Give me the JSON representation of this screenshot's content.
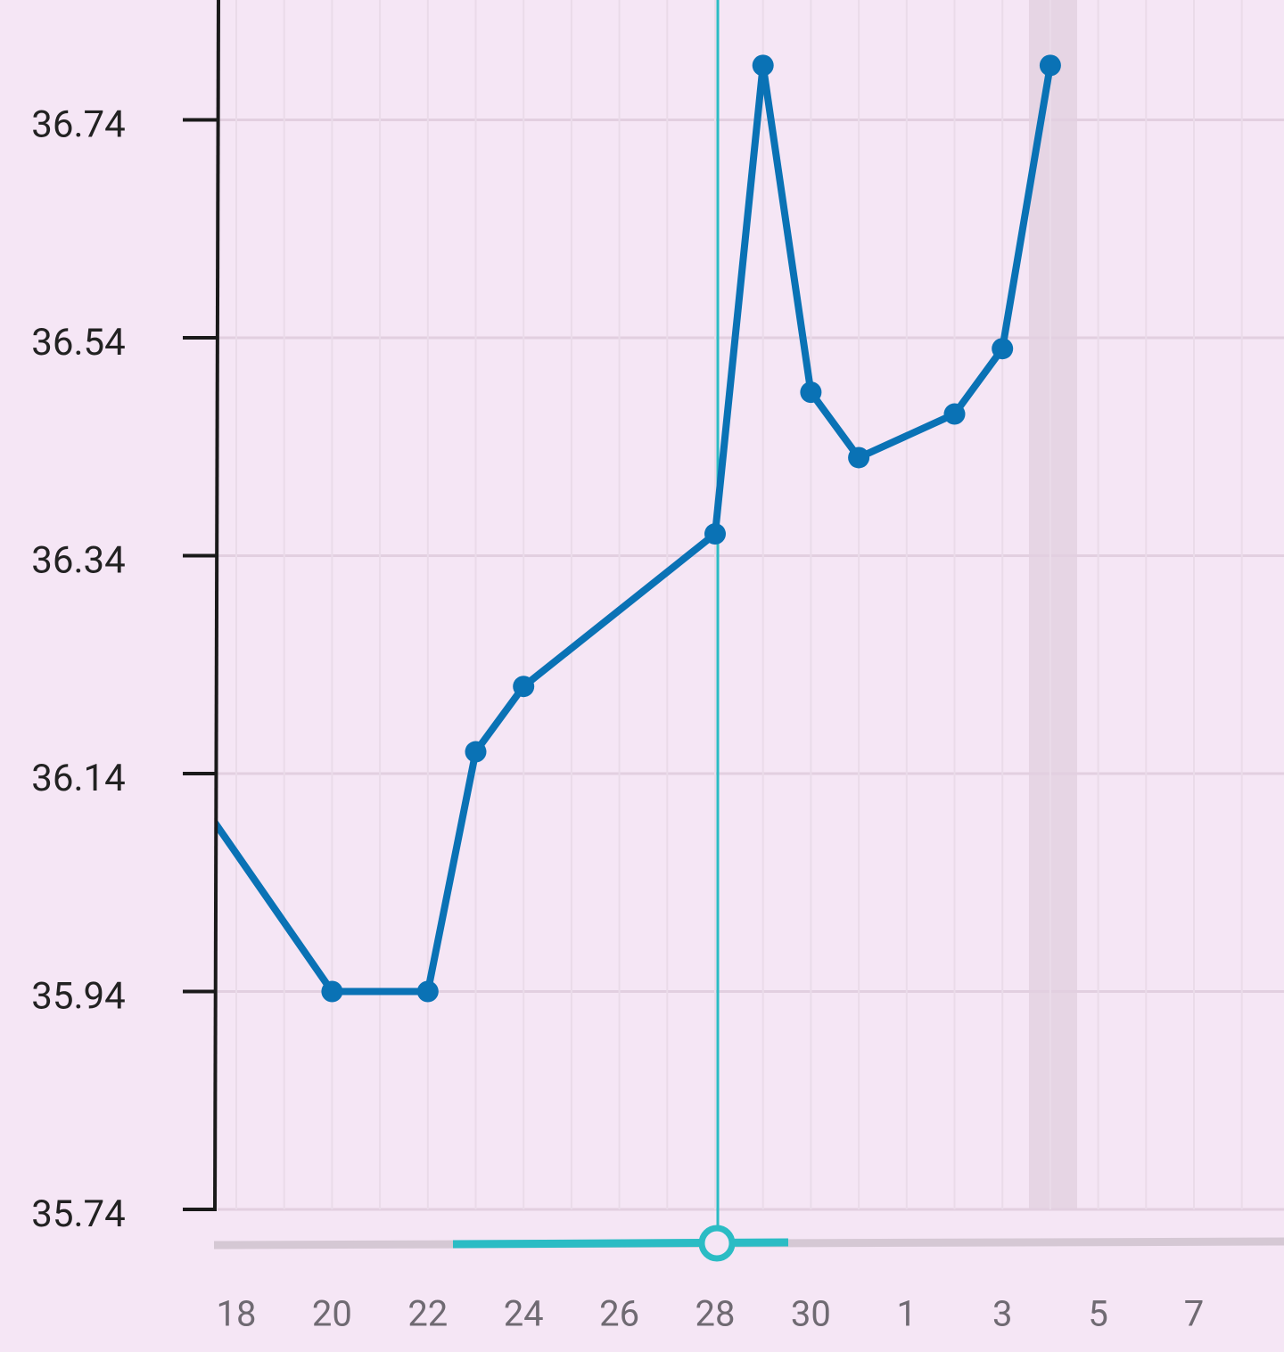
{
  "chart_data": {
    "type": "line",
    "categories": [
      null,
      "18",
      null,
      "20",
      null,
      "22",
      null,
      "24",
      null,
      "26",
      null,
      "28",
      null,
      "30",
      null,
      "1",
      null,
      "3",
      null,
      "5",
      null,
      "7",
      null
    ],
    "series": [
      {
        "color": "#0a72b5",
        "values": [
          36.13,
          null,
          null,
          35.94,
          null,
          35.94,
          36.16,
          36.22,
          null,
          null,
          null,
          36.36,
          36.79,
          36.49,
          36.43,
          null,
          36.47,
          36.53,
          36.79,
          null,
          null,
          null,
          null
        ]
      }
    ],
    "ylim": [
      35.74,
      36.85
    ],
    "yticks": [
      35.74,
      35.94,
      36.14,
      36.34,
      36.54,
      36.74
    ],
    "grid": true
  }
}
